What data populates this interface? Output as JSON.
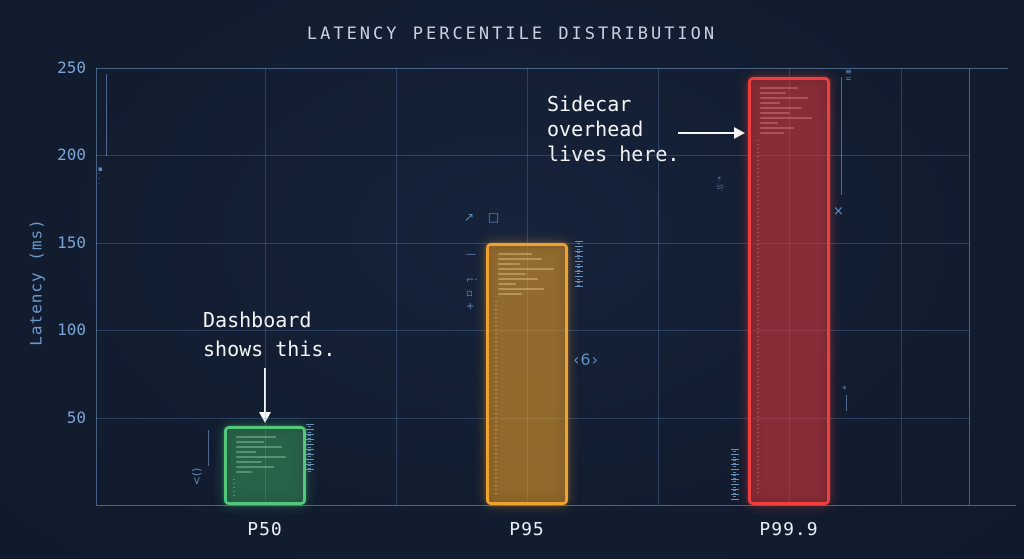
{
  "title": "LATENCY PERCENTILE DISTRIBUTION",
  "chart_data": {
    "type": "bar",
    "title": "LATENCY PERCENTILE DISTRIBUTION",
    "categories": [
      "P50",
      "P95",
      "P99.9"
    ],
    "values": [
      45,
      150,
      245
    ],
    "unit": "ms",
    "xlabel": "",
    "ylabel": "Latency (ms)",
    "ylim": [
      0,
      250
    ],
    "yticks": [
      50,
      100,
      150,
      200,
      250
    ],
    "grid": true,
    "legend": false,
    "bar_colors": [
      {
        "name": "green",
        "border": "#53c87c",
        "fill": "rgba(72,195,110,0.42)",
        "glow": "rgba(83,200,124,0.35)",
        "texture": "rgba(170,240,190,0.35)"
      },
      {
        "name": "amber",
        "border": "#f0a231",
        "fill": "rgba(240,160,40,0.58)",
        "glow": "rgba(240,162,49,0.35)",
        "texture": "rgba(255,225,160,0.35)"
      },
      {
        "name": "red",
        "border": "#ee3e3e",
        "fill": "rgba(215,55,60,0.60)",
        "glow": "rgba(238,62,62,0.38)",
        "texture": "rgba(255,170,170,0.30)"
      }
    ]
  },
  "annotations": {
    "dashboard": {
      "text": "Dashboard\nshows this.",
      "arrow": "down",
      "target": "P50"
    },
    "sidecar": {
      "text": "Sidecar\noverhead\nlives here.",
      "arrow": "right",
      "target": "P99.9"
    }
  },
  "decorations": {
    "glyphs": [
      {
        "name": "axis-scan-line",
        "text": ""
      },
      {
        "name": "axis-marker",
        "text": "▪\n·\n·\n·"
      },
      {
        "name": "green-bracket-line",
        "text": ""
      },
      {
        "name": "green-bracket",
        "text": "()>"
      },
      {
        "name": "green-ruler",
        "text": ""
      },
      {
        "name": "orange-cursor",
        "text": "↗ □"
      },
      {
        "name": "orange-margin-stack",
        "text": "—\n\n⌐·\n▫\n+"
      },
      {
        "name": "orange-ruler",
        "text": ""
      },
      {
        "name": "angle-six",
        "text": "‹6›"
      },
      {
        "name": "red-margin-marks",
        "text": "*·.||·"
      },
      {
        "name": "red-ruler",
        "text": ""
      },
      {
        "name": "red-side-line",
        "text": ""
      },
      {
        "name": "red-side-marks",
        "text": "≡\n="
      },
      {
        "name": "red-x-mark",
        "text": "×"
      },
      {
        "name": "red-pin",
        "text": "*"
      },
      {
        "name": "red-pin-line",
        "text": ""
      }
    ]
  },
  "colors": {
    "background": "#121d30",
    "grid": "rgba(104,146,202,0.30)",
    "frame": "rgba(128,166,216,0.50)",
    "tick_text": "#7ba3d4",
    "axis_label_text": "#6d97c9",
    "title_text": "#c7d0de",
    "annotation_text": "#f2f4f6",
    "category_text": "#e9edf3",
    "glyph": "#6f9fd4",
    "arrow": "#f5f7fa"
  }
}
